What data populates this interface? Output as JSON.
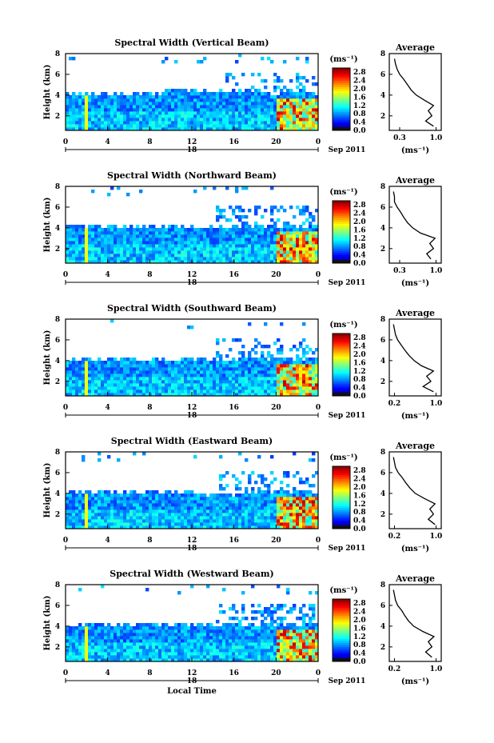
{
  "figure": {
    "xlabel": "Local Time",
    "date_label": "Sep 2011",
    "colorbar_unit": "(ms⁻¹)",
    "avg_title": "Average",
    "avg_unit": "(ms⁻¹)",
    "ylabel": "Height (km)"
  },
  "chart_data": [
    {
      "type": "heatmap",
      "title": "Spectral Width (Vertical Beam)",
      "xlabel": "",
      "ylabel": "Height (km)",
      "x_ticks": [
        "0",
        "4",
        "8",
        "12",
        "16",
        "20",
        "0"
      ],
      "x_day_label": "18",
      "x_range": [
        0,
        24
      ],
      "y_range": [
        0.6,
        8
      ],
      "y_ticks": [
        "2",
        "4",
        "6",
        "8"
      ],
      "colorbar": {
        "label": "(ms⁻¹)",
        "ticks": [
          "0.0",
          "0.4",
          "0.8",
          "1.2",
          "1.6",
          "2.0",
          "2.4",
          "2.8"
        ],
        "range": [
          0,
          3.0
        ]
      },
      "average_profile": {
        "title": "Average",
        "xlabel": "(ms⁻¹)",
        "x_ticks": [
          "0.3",
          "1.0"
        ],
        "x_range": [
          0.1,
          1.1
        ],
        "y_range": [
          0.6,
          8
        ],
        "y_ticks": [
          "2",
          "4",
          "6",
          "8"
        ],
        "height_km": [
          1.0,
          1.5,
          2.0,
          2.5,
          3.0,
          3.5,
          4.0,
          4.5,
          5.0,
          5.5,
          6.0,
          6.5,
          7.0,
          7.5
        ],
        "width": [
          0.95,
          0.8,
          0.92,
          0.85,
          0.95,
          0.78,
          0.62,
          0.52,
          0.45,
          0.38,
          0.3,
          0.25,
          0.22,
          0.2
        ]
      }
    },
    {
      "type": "heatmap",
      "title": "Spectral Width (Northward Beam)",
      "xlabel": "",
      "ylabel": "Height (km)",
      "x_ticks": [
        "0",
        "4",
        "8",
        "12",
        "16",
        "20",
        "0"
      ],
      "x_day_label": "18",
      "x_range": [
        0,
        24
      ],
      "y_range": [
        0.6,
        8
      ],
      "y_ticks": [
        "2",
        "4",
        "6",
        "8"
      ],
      "colorbar": {
        "label": "(ms⁻¹)",
        "ticks": [
          "0.0",
          "0.4",
          "0.8",
          "1.2",
          "1.6",
          "2.0",
          "2.4",
          "2.8"
        ],
        "range": [
          0,
          3.0
        ]
      },
      "average_profile": {
        "title": "Average",
        "xlabel": "(ms⁻¹)",
        "x_ticks": [
          "0.3",
          "1.0"
        ],
        "x_range": [
          0.1,
          1.1
        ],
        "y_range": [
          0.6,
          8
        ],
        "y_ticks": [
          "2",
          "4",
          "6",
          "8"
        ],
        "height_km": [
          1.0,
          1.5,
          2.0,
          2.5,
          3.0,
          3.5,
          4.0,
          4.5,
          5.0,
          5.5,
          6.0,
          6.5,
          7.0,
          7.5
        ],
        "width": [
          0.9,
          0.82,
          0.95,
          0.88,
          0.98,
          0.7,
          0.55,
          0.45,
          0.38,
          0.32,
          0.25,
          0.2,
          0.2,
          0.18
        ]
      }
    },
    {
      "type": "heatmap",
      "title": "Spectral Width (Southward Beam)",
      "xlabel": "",
      "ylabel": "Height (km)",
      "x_ticks": [
        "0",
        "4",
        "8",
        "12",
        "16",
        "20",
        "0"
      ],
      "x_day_label": "18",
      "x_range": [
        0,
        24
      ],
      "y_range": [
        0.6,
        8
      ],
      "y_ticks": [
        "2",
        "4",
        "6",
        "8"
      ],
      "colorbar": {
        "label": "(ms⁻¹)",
        "ticks": [
          "0.0",
          "0.4",
          "0.8",
          "1.2",
          "1.6",
          "2.0",
          "2.4",
          "2.8"
        ],
        "range": [
          0,
          3.0
        ]
      },
      "average_profile": {
        "title": "Average",
        "xlabel": "(ms⁻¹)",
        "x_ticks": [
          "0.2",
          "1.0"
        ],
        "x_range": [
          0.1,
          1.1
        ],
        "y_range": [
          0.6,
          8
        ],
        "y_ticks": [
          "2",
          "4",
          "6",
          "8"
        ],
        "height_km": [
          1.0,
          1.5,
          2.0,
          2.5,
          3.0,
          3.5,
          4.0,
          4.5,
          5.0,
          5.5,
          6.0,
          6.5,
          7.0,
          7.5
        ],
        "width": [
          0.95,
          0.75,
          0.9,
          0.82,
          0.95,
          0.72,
          0.58,
          0.48,
          0.4,
          0.33,
          0.26,
          0.22,
          0.2,
          0.18
        ]
      }
    },
    {
      "type": "heatmap",
      "title": "Spectral Width (Eastward Beam)",
      "xlabel": "",
      "ylabel": "Height (km)",
      "x_ticks": [
        "0",
        "4",
        "8",
        "12",
        "16",
        "20",
        "0"
      ],
      "x_day_label": "18",
      "x_range": [
        0,
        24
      ],
      "y_range": [
        0.6,
        8
      ],
      "y_ticks": [
        "2",
        "4",
        "6",
        "8"
      ],
      "colorbar": {
        "label": "(ms⁻¹)",
        "ticks": [
          "0.0",
          "0.4",
          "0.8",
          "1.2",
          "1.6",
          "2.0",
          "2.4",
          "2.8"
        ],
        "range": [
          0,
          3.0
        ]
      },
      "average_profile": {
        "title": "Average",
        "xlabel": "(ms⁻¹)",
        "x_ticks": [
          "0.2",
          "1.0"
        ],
        "x_range": [
          0.1,
          1.1
        ],
        "y_range": [
          0.6,
          8
        ],
        "y_ticks": [
          "2",
          "4",
          "6",
          "8"
        ],
        "height_km": [
          1.0,
          1.5,
          2.0,
          2.5,
          3.0,
          3.5,
          4.0,
          4.5,
          5.0,
          5.5,
          6.0,
          6.5,
          7.0,
          7.5
        ],
        "width": [
          0.98,
          0.85,
          0.95,
          0.88,
          0.98,
          0.78,
          0.6,
          0.5,
          0.42,
          0.35,
          0.27,
          0.22,
          0.2,
          0.18
        ]
      }
    },
    {
      "type": "heatmap",
      "title": "Spectral Width (Westward Beam)",
      "xlabel": "Local Time",
      "ylabel": "Height (km)",
      "x_ticks": [
        "0",
        "4",
        "8",
        "12",
        "16",
        "20",
        "0"
      ],
      "x_day_label": "18",
      "x_range": [
        0,
        24
      ],
      "y_range": [
        0.6,
        8
      ],
      "y_ticks": [
        "2",
        "4",
        "6",
        "8"
      ],
      "colorbar": {
        "label": "(ms⁻¹)",
        "ticks": [
          "0.0",
          "0.4",
          "0.8",
          "1.2",
          "1.6",
          "2.0",
          "2.4",
          "2.8"
        ],
        "range": [
          0,
          3.0
        ]
      },
      "average_profile": {
        "title": "Average",
        "xlabel": "(ms⁻¹)",
        "x_ticks": [
          "0.2",
          "1.0"
        ],
        "x_range": [
          0.1,
          1.1
        ],
        "y_range": [
          0.6,
          8
        ],
        "y_ticks": [
          "2",
          "4",
          "6",
          "8"
        ],
        "height_km": [
          1.0,
          1.5,
          2.0,
          2.5,
          3.0,
          3.5,
          4.0,
          4.5,
          5.0,
          5.5,
          6.0,
          6.5,
          7.0,
          7.5
        ],
        "width": [
          0.92,
          0.8,
          0.92,
          0.85,
          0.96,
          0.74,
          0.57,
          0.47,
          0.4,
          0.34,
          0.26,
          0.22,
          0.2,
          0.18
        ]
      }
    }
  ]
}
